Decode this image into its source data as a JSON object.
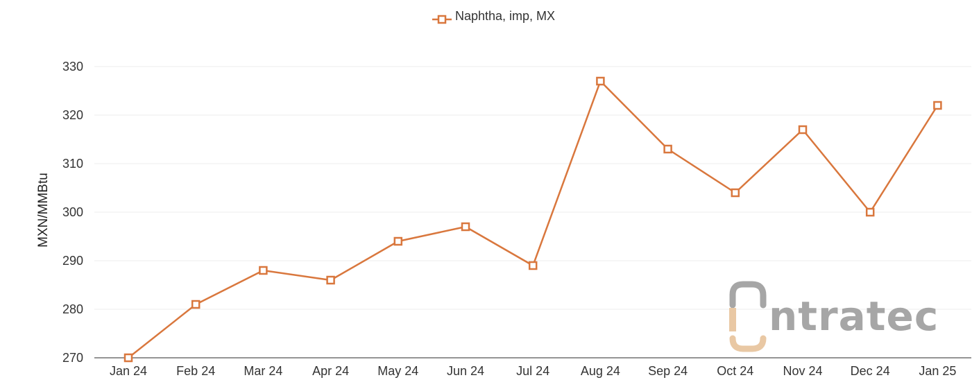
{
  "chart_data": {
    "type": "line",
    "categories": [
      "Jan 24",
      "Feb 24",
      "Mar 24",
      "Apr 24",
      "May 24",
      "Jun 24",
      "Jul 24",
      "Aug 24",
      "Sep 24",
      "Oct 24",
      "Nov 24",
      "Dec 24",
      "Jan 25"
    ],
    "series": [
      {
        "name": "Naphtha, imp, MX",
        "values": [
          270,
          281,
          288,
          286,
          294,
          297,
          289,
          327,
          313,
          304,
          317,
          300,
          322
        ],
        "color": "#d9773d",
        "marker": "square-open"
      }
    ],
    "title": "",
    "xlabel": "",
    "ylabel": "MXN/MMBtu",
    "ylim": [
      270,
      330
    ],
    "yticks": [
      270,
      280,
      290,
      300,
      310,
      320,
      330
    ],
    "grid": true,
    "legend_position": "top-center"
  },
  "watermark": {
    "text": "intratec",
    "colors": {
      "gray": "#a6a6a6",
      "tan": "#e9c8a4"
    }
  },
  "colors": {
    "gridline": "#eeeeee",
    "axis": "#555555"
  }
}
